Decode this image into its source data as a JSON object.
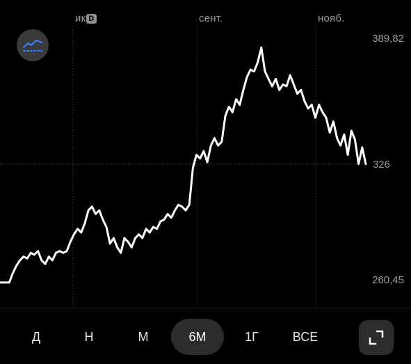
{
  "chart_data": {
    "type": "line",
    "x_labels": [
      "ик",
      "сент.",
      "нояб."
    ],
    "y_tick_labels": [
      "389,82",
      "326",
      "260,45"
    ],
    "ylim": [
      260.45,
      389.82
    ],
    "reference_value": 326,
    "grid": "vertical dotted at month starts, horizontal dotted at 326",
    "values": [
      262,
      262,
      267,
      271,
      274,
      276,
      275,
      278,
      277,
      279,
      274,
      272,
      276,
      274,
      278,
      279,
      278,
      279,
      284,
      288,
      291,
      289,
      294,
      301,
      303,
      299,
      301,
      296,
      292,
      283,
      286,
      281,
      278,
      286,
      284,
      281,
      286,
      288,
      286,
      291,
      289,
      292,
      291,
      295,
      296,
      299,
      297,
      301,
      304,
      303,
      301,
      304,
      324,
      331,
      329,
      333,
      327,
      336,
      340,
      336,
      338,
      352,
      357,
      354,
      361,
      358,
      366,
      373,
      377,
      376,
      381,
      389,
      376,
      372,
      368,
      372,
      366,
      369,
      368,
      374,
      369,
      364,
      366,
      360,
      356,
      358,
      351,
      358,
      354,
      351,
      343,
      349,
      340,
      336,
      342,
      331,
      344,
      339,
      326,
      335,
      326
    ]
  },
  "chart_badge": "D",
  "periods": [
    {
      "label": "Д",
      "active": false
    },
    {
      "label": "Н",
      "active": false
    },
    {
      "label": "М",
      "active": false
    },
    {
      "label": "6М",
      "active": true
    },
    {
      "label": "1Г",
      "active": false
    },
    {
      "label": "ВСЕ",
      "active": false
    }
  ],
  "icons": {
    "indicator": "chart-indicator-icon",
    "expand": "expand-icon"
  },
  "colors": {
    "line": "#ffffff",
    "indicator_accent": "#3b82f6",
    "active_period_bg": "#2c2c2e"
  }
}
